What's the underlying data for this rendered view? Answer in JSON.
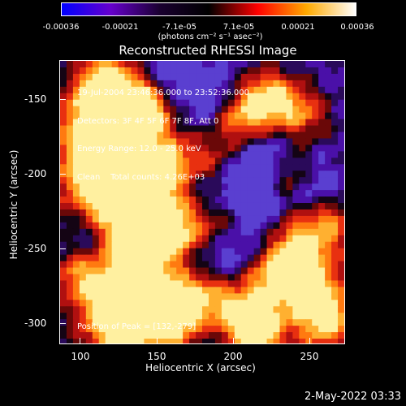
{
  "colorbar": {
    "tick_labels": [
      "-0.00036",
      "-0.00021",
      "-7.1e-05",
      "7.1e-05",
      "0.00021",
      "0.00036"
    ],
    "units": "(photons cm⁻² s⁻¹ asec⁻²)",
    "colors": [
      "#0000ff",
      "#6600cc",
      "#1a0030",
      "#000000",
      "#ff0000",
      "#ffaa00",
      "#ffffff"
    ]
  },
  "title": "Reconstructed RHESSI Image",
  "info": {
    "time_range": "19-Jul-2004 23:46:36.000 to 23:52:36.000",
    "detectors": "Detectors: 3F 4F 5F 6F 7F 8F, Att 0",
    "energy": "Energy Range: 12.0 - 25.0 keV",
    "clean": "Clean    Total counts: 4.26E+03",
    "peak": "Position of Peak = [132,-279]"
  },
  "axes": {
    "xlabel": "Heliocentric X (arcsec)",
    "ylabel": "Heliocentric Y (arcsec)",
    "xticks": [
      "100",
      "150",
      "200",
      "250"
    ],
    "yticks": [
      "-150",
      "-200",
      "-250",
      "-300"
    ]
  },
  "footer": {
    "date": "2-May-2022 03:33"
  }
}
